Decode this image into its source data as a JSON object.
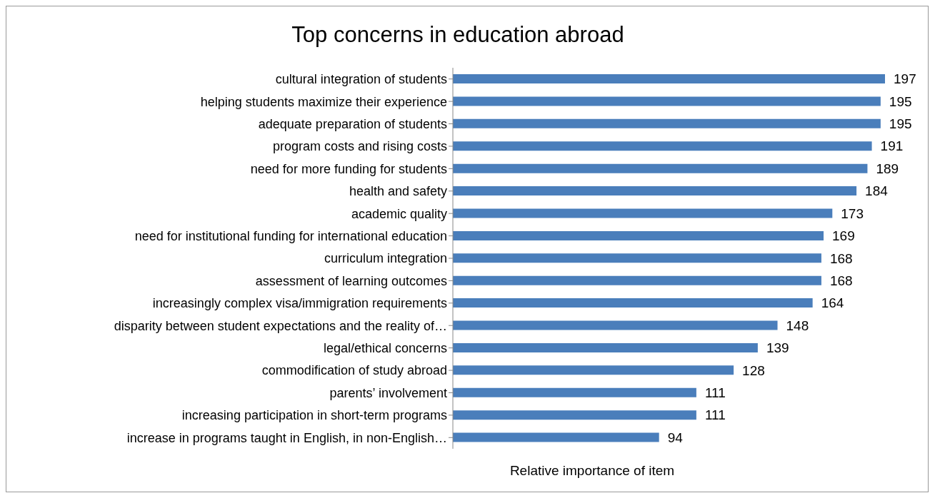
{
  "chart_data": {
    "type": "bar",
    "orientation": "horizontal",
    "title": "Top concerns in education abroad",
    "xlabel": "Relative importance of item",
    "categories": [
      "cultural integration of students",
      "helping students maximize their experience",
      "adequate preparation of students",
      "program costs and rising costs",
      "need for more funding for students",
      "health and safety",
      "academic quality",
      "need for institutional funding for international education",
      "curriculum integration",
      "assessment of learning outcomes",
      "increasingly complex visa/immigration requirements",
      "disparity between student expectations and the reality of…",
      "legal/ethical concerns",
      "commodification of study abroad",
      "parents’ involvement ",
      "increasing participation in short-term programs",
      "increase in programs taught in English,  in non-English…"
    ],
    "values": [
      197,
      195,
      195,
      191,
      189,
      184,
      173,
      169,
      168,
      168,
      164,
      148,
      139,
      128,
      111,
      111,
      94
    ],
    "color": "#4a7ebb",
    "data_labels": true,
    "tick_labels": "y",
    "grid": false,
    "legend": false
  }
}
